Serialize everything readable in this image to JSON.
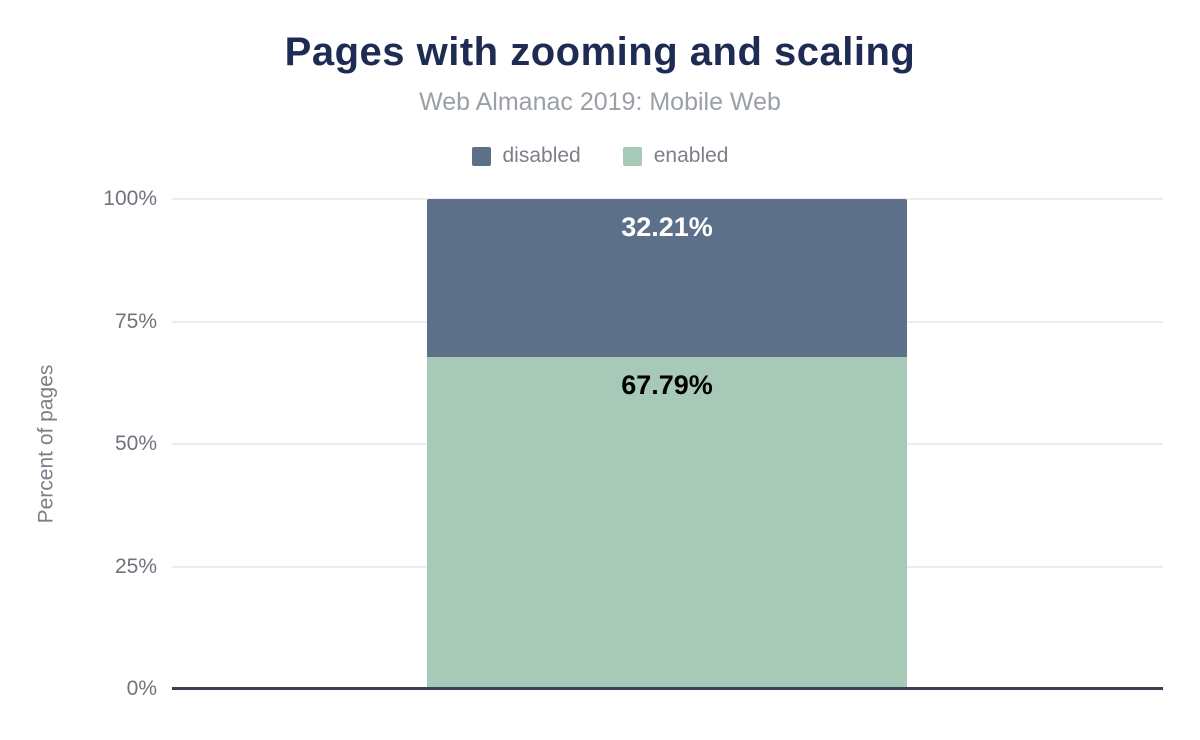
{
  "chart_data": {
    "type": "bar",
    "stacked": true,
    "title": "Pages with zooming and scaling",
    "subtitle": "Web Almanac 2019: Mobile Web",
    "ylabel": "Percent of pages",
    "xlabel": "",
    "ylim": [
      0,
      100
    ],
    "yticks": [
      "0%",
      "25%",
      "50%",
      "75%",
      "100%"
    ],
    "grid": true,
    "legend_position": "top",
    "categories": [
      ""
    ],
    "series": [
      {
        "name": "disabled",
        "values": [
          32.21
        ],
        "data_label": "32.21%",
        "color": "#5d7089",
        "label_color": "#ffffff"
      },
      {
        "name": "enabled",
        "values": [
          67.79
        ],
        "data_label": "67.79%",
        "color": "#a6c9b8",
        "label_color": "#000000"
      }
    ]
  },
  "colors": {
    "title": "#1e2b52",
    "subtitle": "#9aa0a6",
    "axis_text": "#6f747c",
    "gridline": "#ebecee",
    "baseline": "#3a4154",
    "background": "#ffffff"
  }
}
